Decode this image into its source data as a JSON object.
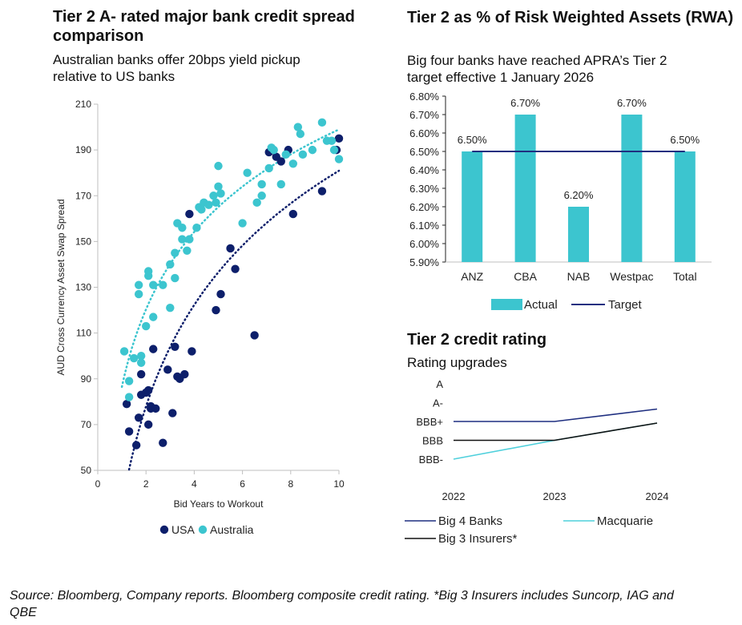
{
  "left_panel": {
    "title_line1": "Tier 2 A- rated major bank credit spread",
    "title_line2": "comparison",
    "subtitle_line1": "Australian banks offer 20bps yield pickup",
    "subtitle_line2": "relative to US banks"
  },
  "right_top_panel": {
    "title": "Tier 2 as % of Risk Weighted Assets (RWA)",
    "subtitle_line1": "Big four banks have reached APRA’s Tier 2",
    "subtitle_line2": "target effective 1 January 2026"
  },
  "right_bottom_panel": {
    "title": "Tier 2 credit rating",
    "subtitle": "Rating upgrades"
  },
  "source": {
    "line1": "Source: Bloomberg, Company reports. Bloomberg composite credit rating. *Big 3 Insurers includes Suncorp, IAG and",
    "line2": "QBE"
  },
  "colors": {
    "usa": "#0d1f6b",
    "australia": "#3cc5cf",
    "bar": "#3cc5cf",
    "target": "#1f2f80",
    "big4": "#1f2f80",
    "macquarie": "#4fd0dc",
    "insurers": "#111111",
    "axis": "#bfbfbf"
  },
  "chart_data": [
    {
      "type": "scatter",
      "xlabel": "Bid Years to Workout",
      "ylabel": "AUD Cross Currency Asset Swap Spread",
      "xlim": [
        0,
        10
      ],
      "ylim": [
        50,
        210
      ],
      "xticks": [
        0,
        2,
        4,
        6,
        8,
        10
      ],
      "yticks": [
        50,
        70,
        90,
        110,
        130,
        150,
        170,
        190,
        210
      ],
      "legend_position": "bottom",
      "series": [
        {
          "name": "USA",
          "color": "#0d1f6b",
          "points": [
            [
              1.2,
              79
            ],
            [
              1.3,
              67
            ],
            [
              1.6,
              61
            ],
            [
              1.7,
              73
            ],
            [
              1.8,
              83
            ],
            [
              1.8,
              92
            ],
            [
              2.0,
              84
            ],
            [
              2.1,
              70
            ],
            [
              2.1,
              85
            ],
            [
              2.2,
              78
            ],
            [
              2.2,
              77
            ],
            [
              2.3,
              103
            ],
            [
              2.4,
              77
            ],
            [
              2.7,
              62
            ],
            [
              2.9,
              94
            ],
            [
              3.1,
              75
            ],
            [
              3.2,
              104
            ],
            [
              3.3,
              91
            ],
            [
              3.4,
              90
            ],
            [
              3.6,
              92
            ],
            [
              3.9,
              102
            ],
            [
              3.8,
              162
            ],
            [
              4.9,
              120
            ],
            [
              5.1,
              127
            ],
            [
              5.5,
              147
            ],
            [
              5.7,
              138
            ],
            [
              6.5,
              109
            ],
            [
              7.1,
              189
            ],
            [
              7.4,
              187
            ],
            [
              7.6,
              185
            ],
            [
              7.9,
              190
            ],
            [
              8.1,
              162
            ],
            [
              9.3,
              172
            ],
            [
              10.0,
              195
            ],
            [
              9.9,
              190
            ]
          ]
        },
        {
          "name": "Australia",
          "color": "#3cc5cf",
          "points": [
            [
              1.1,
              102
            ],
            [
              1.3,
              89
            ],
            [
              1.3,
              82
            ],
            [
              1.5,
              99
            ],
            [
              1.7,
              127
            ],
            [
              1.7,
              131
            ],
            [
              1.8,
              100
            ],
            [
              1.8,
              97
            ],
            [
              2.0,
              113
            ],
            [
              2.1,
              135
            ],
            [
              2.1,
              137
            ],
            [
              2.3,
              131
            ],
            [
              2.3,
              117
            ],
            [
              2.7,
              131
            ],
            [
              3.0,
              140
            ],
            [
              3.0,
              121
            ],
            [
              3.2,
              134
            ],
            [
              3.2,
              145
            ],
            [
              3.3,
              158
            ],
            [
              3.5,
              156
            ],
            [
              3.5,
              151
            ],
            [
              3.7,
              146
            ],
            [
              3.8,
              151
            ],
            [
              4.1,
              156
            ],
            [
              4.2,
              165
            ],
            [
              4.3,
              164
            ],
            [
              4.4,
              167
            ],
            [
              4.6,
              166
            ],
            [
              4.8,
              170
            ],
            [
              5.0,
              174
            ],
            [
              4.9,
              167
            ],
            [
              5.0,
              183
            ],
            [
              5.1,
              171
            ],
            [
              6.0,
              158
            ],
            [
              6.2,
              180
            ],
            [
              6.6,
              167
            ],
            [
              6.8,
              170
            ],
            [
              6.8,
              175
            ],
            [
              7.1,
              182
            ],
            [
              7.2,
              191
            ],
            [
              7.3,
              190
            ],
            [
              7.6,
              175
            ],
            [
              7.8,
              188
            ],
            [
              8.1,
              184
            ],
            [
              8.3,
              200
            ],
            [
              8.4,
              197
            ],
            [
              8.5,
              188
            ],
            [
              8.9,
              190
            ],
            [
              9.3,
              202
            ],
            [
              9.5,
              194
            ],
            [
              9.7,
              194
            ],
            [
              9.8,
              190
            ],
            [
              10.0,
              186
            ]
          ]
        }
      ]
    },
    {
      "type": "bar",
      "categories": [
        "ANZ",
        "CBA",
        "NAB",
        "Westpac",
        "Total"
      ],
      "ylim": [
        5.9,
        6.8
      ],
      "yticks": [
        "5.90%",
        "6.00%",
        "6.10%",
        "6.20%",
        "6.30%",
        "6.40%",
        "6.50%",
        "6.60%",
        "6.70%",
        "6.80%"
      ],
      "series": [
        {
          "name": "Actual",
          "values": [
            6.5,
            6.7,
            6.2,
            6.7,
            6.5
          ],
          "labels": [
            "6.50%",
            "6.70%",
            "6.20%",
            "6.70%",
            "6.50%"
          ]
        },
        {
          "name": "Target",
          "values": [
            6.5,
            6.5,
            6.5,
            6.5,
            6.5
          ]
        }
      ],
      "legend_position": "bottom"
    },
    {
      "type": "line",
      "x": [
        "2022",
        "2023",
        "2024"
      ],
      "yticks": [
        "A",
        "A-",
        "BBB+",
        "BBB",
        "BBB-"
      ],
      "series": [
        {
          "name": "Big 4 Banks",
          "values": [
            "BBB+",
            "BBB+",
            "A-"
          ]
        },
        {
          "name": "Macquarie",
          "values": [
            "BBB-",
            "BBB",
            "BBB+"
          ]
        },
        {
          "name": "Big 3 Insurers*",
          "values": [
            "BBB",
            "BBB",
            "BBB+"
          ]
        }
      ],
      "legend_position": "bottom"
    }
  ]
}
